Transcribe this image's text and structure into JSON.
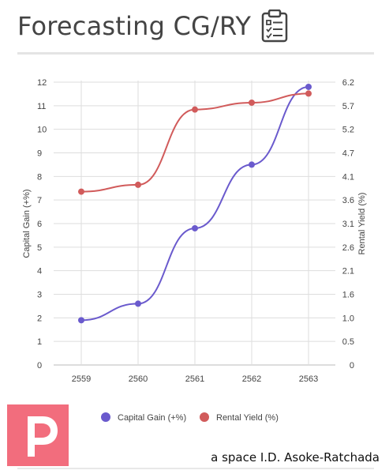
{
  "header": {
    "title": "Forecasting CG/RY",
    "icon": "clipboard-checklist-icon"
  },
  "chart_data": {
    "type": "line",
    "x": [
      "2559",
      "2560",
      "2561",
      "2562",
      "2563"
    ],
    "series": [
      {
        "name": "Capital Gain (+%)",
        "axis": "left",
        "color": "#6a5acd",
        "values": [
          1.9,
          2.6,
          5.8,
          8.5,
          11.8
        ]
      },
      {
        "name": "Rental Yield (%)",
        "axis": "right",
        "color": "#d15b5b",
        "values": [
          3.8,
          3.95,
          5.6,
          5.75,
          5.95
        ]
      }
    ],
    "y_left": {
      "label": "Capital Gain (+%)",
      "range": [
        0,
        12
      ],
      "ticks": [
        "0",
        "1",
        "2",
        "3",
        "4",
        "5",
        "6",
        "7",
        "8",
        "9",
        "10",
        "11",
        "12"
      ]
    },
    "y_right": {
      "label": "Rental Yield (%)",
      "range": [
        0,
        6.2
      ],
      "ticks": [
        "0",
        "0.5",
        "1.0",
        "1.6",
        "2.1",
        "2.6",
        "3.1",
        "3.6",
        "4.1",
        "4.7",
        "5.2",
        "5.7",
        "6.2"
      ]
    },
    "grid": true,
    "legend": "bottom"
  },
  "footer": {
    "logo_icon": "letter-p-logo-icon",
    "caption": "a space I.D. Asoke-Ratchada"
  }
}
